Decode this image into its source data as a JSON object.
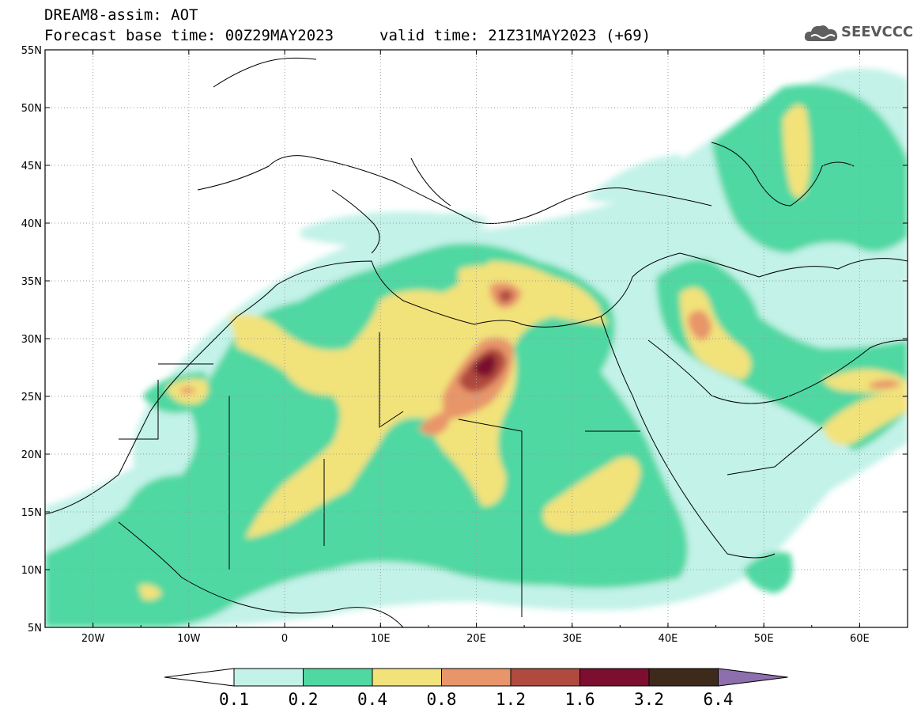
{
  "header": {
    "title_line1": "DREAM8-assim: AOT",
    "title_line2": "Forecast base time: 00Z29MAY2023",
    "valid_time": "valid time: 21Z31MAY2023 (+69)",
    "logo_text": "SEEVCCC",
    "logo_icon": "cloud-logo-icon"
  },
  "map": {
    "lon_range": [
      -25,
      65
    ],
    "lat_range": [
      5,
      55
    ],
    "lon_ticks": [
      "20W",
      "10W",
      "0",
      "10E",
      "20E",
      "30E",
      "40E",
      "50E",
      "60E"
    ],
    "lat_ticks": [
      "55N",
      "50N",
      "45N",
      "40N",
      "35N",
      "30N",
      "25N",
      "20N",
      "15N",
      "10N",
      "5N"
    ],
    "grid": "dotted"
  },
  "colorbar": {
    "levels": [
      "0.1",
      "0.2",
      "0.4",
      "0.8",
      "1.2",
      "1.6",
      "3.2",
      "6.4"
    ],
    "colors": [
      "#ffffff",
      "#c2f2e8",
      "#4fd8a2",
      "#f2e27a",
      "#e8956a",
      "#b04a3e",
      "#7c0f2f",
      "#3e2a1a",
      "#8e6fae"
    ]
  }
}
